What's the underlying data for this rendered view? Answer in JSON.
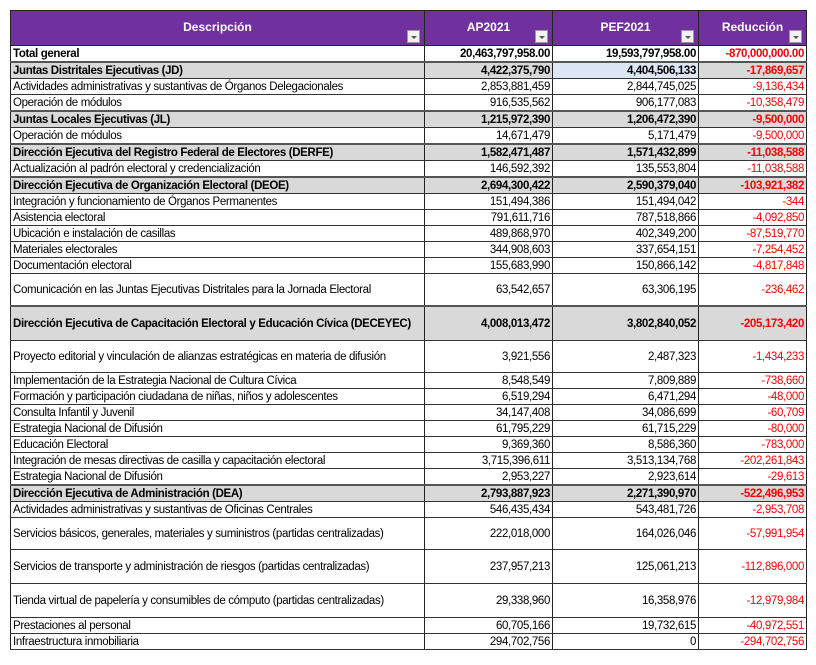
{
  "headers": [
    "Descripción",
    "AP2021",
    "PEF2021",
    "Reducción"
  ],
  "colors": {
    "header": "#7030a0",
    "group": "#d9d9d9",
    "negative": "#ff0000",
    "selected_cell": "#dce6f5"
  },
  "rows": [
    {
      "type": "total",
      "d": "Total general",
      "ap": "20,463,797,958.00",
      "pef": "19,593,797,958.00",
      "red": "-870,000,000.00"
    },
    {
      "type": "group",
      "d": "Juntas Distritales Ejecutivas (JD)",
      "ap": "4,422,375,790",
      "pef": "4,404,506,133",
      "red": "-17,869,657",
      "selected": "pef"
    },
    {
      "type": "item",
      "d": "Actividades administrativas y sustantivas de Órganos Delegacionales",
      "ap": "2,853,881,459",
      "pef": "2,844,745,025",
      "red": "-9,136,434"
    },
    {
      "type": "item",
      "d": "Operación de módulos",
      "ap": "916,535,562",
      "pef": "906,177,083",
      "red": "-10,358,479"
    },
    {
      "type": "group",
      "d": "Juntas Locales Ejecutivas (JL)",
      "ap": "1,215,972,390",
      "pef": "1,206,472,390",
      "red": "-9,500,000"
    },
    {
      "type": "item",
      "d": "Operación de módulos",
      "ap": "14,671,479",
      "pef": "5,171,479",
      "red": "-9,500,000"
    },
    {
      "type": "group",
      "d": "Dirección Ejecutiva del Registro Federal de Electores (DERFE)",
      "ap": "1,582,471,487",
      "pef": "1,571,432,899",
      "red": "-11,038,588"
    },
    {
      "type": "item",
      "d": "Actualización al padrón electoral y credencialización",
      "ap": "146,592,392",
      "pef": "135,553,804",
      "red": "-11,038,588"
    },
    {
      "type": "group",
      "d": "Dirección Ejecutiva de Organización Electoral (DEOE)",
      "ap": "2,694,300,422",
      "pef": "2,590,379,040",
      "red": "-103,921,382"
    },
    {
      "type": "item",
      "d": "Integración y funcionamiento de Órganos Permanentes",
      "ap": "151,494,386",
      "pef": "151,494,042",
      "red": "-344"
    },
    {
      "type": "item",
      "d": "Asistencia electoral",
      "ap": "791,611,716",
      "pef": "787,518,866",
      "red": "-4,092,850"
    },
    {
      "type": "item",
      "d": "Ubicación e instalación de casillas",
      "ap": "489,868,970",
      "pef": "402,349,200",
      "red": "-87,519,770"
    },
    {
      "type": "item",
      "d": "Materiales electorales",
      "ap": "344,908,603",
      "pef": "337,654,151",
      "red": "-7,254,452"
    },
    {
      "type": "item",
      "d": "Documentación electoral",
      "ap": "155,683,990",
      "pef": "150,866,142",
      "red": "-4,817,848"
    },
    {
      "type": "item",
      "d": "Comunicación en las Juntas Ejecutivas Distritales para la Jornada Electoral",
      "ap": "63,542,657",
      "pef": "63,306,195",
      "red": "-236,462"
    },
    {
      "type": "group",
      "d": "Dirección Ejecutiva de Capacitación Electoral y Educación Cívica (DECEYEC)",
      "ap": "4,008,013,472",
      "pef": "3,802,840,052",
      "red": "-205,173,420"
    },
    {
      "type": "item",
      "d": "Proyecto editorial y vinculación de alianzas estratégicas en materia de difusión",
      "ap": "3,921,556",
      "pef": "2,487,323",
      "red": "-1,434,233"
    },
    {
      "type": "item",
      "d": "Implementación de la Estrategia Nacional de Cultura Cívica",
      "ap": "8,548,549",
      "pef": "7,809,889",
      "red": "-738,660"
    },
    {
      "type": "item",
      "d": "Formación y participación ciudadana de niñas, niños y adolescentes",
      "ap": "6,519,294",
      "pef": "6,471,294",
      "red": "-48,000"
    },
    {
      "type": "item",
      "d": "Consulta Infantil y Juvenil",
      "ap": "34,147,408",
      "pef": "34,086,699",
      "red": "-60,709"
    },
    {
      "type": "item",
      "d": "Estrategia Nacional de Difusión",
      "ap": "61,795,229",
      "pef": "61,715,229",
      "red": "-80,000"
    },
    {
      "type": "item",
      "d": "Educación Electoral",
      "ap": "9,369,360",
      "pef": "8,586,360",
      "red": "-783,000"
    },
    {
      "type": "item",
      "d": "Integración de mesas directivas de casilla y capacitación electoral",
      "ap": "3,715,396,611",
      "pef": "3,513,134,768",
      "red": "-202,261,843"
    },
    {
      "type": "item",
      "d": "Estrategia Nacional de Difusión",
      "ap": "2,953,227",
      "pef": "2,923,614",
      "red": "-29,613"
    },
    {
      "type": "group",
      "d": "Dirección Ejecutiva de Administración (DEA)",
      "ap": "2,793,887,923",
      "pef": "2,271,390,970",
      "red": "-522,496,953"
    },
    {
      "type": "item",
      "d": "Actividades administrativas y sustantivas de Oficinas Centrales",
      "ap": "546,435,434",
      "pef": "543,481,726",
      "red": "-2,953,708"
    },
    {
      "type": "item",
      "d": "Servicios básicos, generales, materiales y suministros (partidas centralizadas)",
      "ap": "222,018,000",
      "pef": "164,026,046",
      "red": "-57,991,954"
    },
    {
      "type": "item",
      "d": "Servicios de transporte y administración de riesgos (partidas centralizadas)",
      "ap": "237,957,213",
      "pef": "125,061,213",
      "red": "-112,896,000"
    },
    {
      "type": "item",
      "d": "Tienda virtual de papelería y consumibles de cómputo (partidas centralizadas)",
      "ap": "29,338,960",
      "pef": "16,358,976",
      "red": "-12,979,984"
    },
    {
      "type": "item",
      "d": "Prestaciones al personal",
      "ap": "60,705,166",
      "pef": "19,732,615",
      "red": "-40,972,551"
    },
    {
      "type": "item",
      "d": "Infraestructura inmobiliaria",
      "ap": "294,702,756",
      "pef": "0",
      "red": "-294,702,756"
    }
  ]
}
